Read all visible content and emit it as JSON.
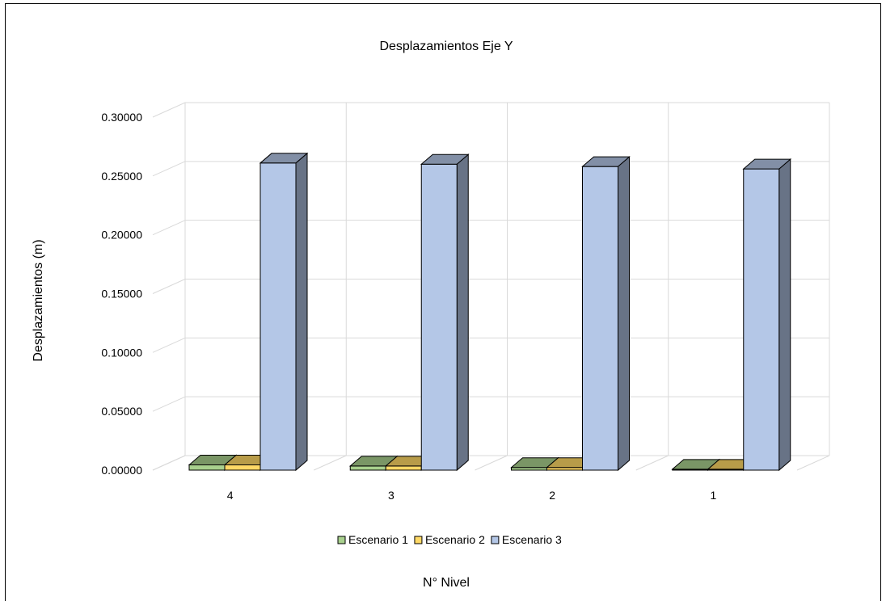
{
  "chart_data": {
    "type": "bar",
    "title": "Desplazamientos  Eje Y",
    "xlabel": "N° Nivel",
    "ylabel": "Desplazamientos  (m)",
    "categories": [
      "4",
      "3",
      "2",
      "1"
    ],
    "ylim": [
      0,
      0.3
    ],
    "yticks": [
      "0.00000",
      "0.05000",
      "0.10000",
      "0.15000",
      "0.20000",
      "0.25000",
      "0.30000"
    ],
    "ytick_values": [
      0,
      0.05,
      0.1,
      0.15,
      0.2,
      0.25,
      0.3
    ],
    "grid": true,
    "legend_position": "bottom",
    "style": "3d-clustered-column",
    "series": [
      {
        "name": "Escenario 1",
        "values": [
          0.0045,
          0.0035,
          0.0022,
          0.0008
        ],
        "color": "#a9d18e"
      },
      {
        "name": "Escenario 2",
        "values": [
          0.0045,
          0.0035,
          0.0022,
          0.0008
        ],
        "color": "#ffd966"
      },
      {
        "name": "Escenario 3",
        "values": [
          0.261,
          0.26,
          0.258,
          0.256
        ],
        "color": "#b4c7e7"
      }
    ]
  }
}
